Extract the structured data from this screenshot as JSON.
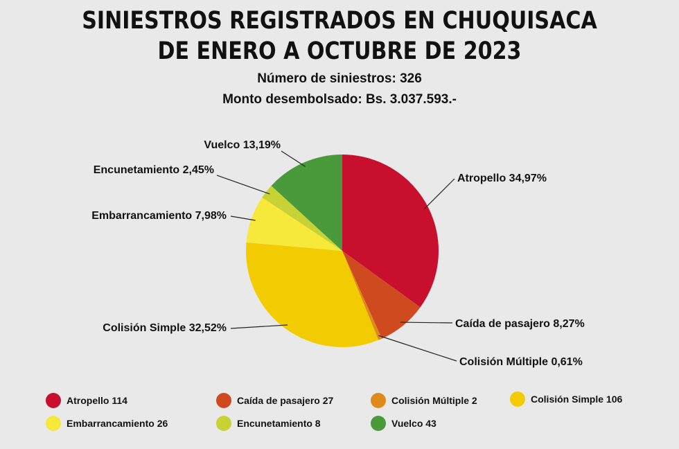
{
  "header": {
    "title_line1": "SINIESTROS REGISTRADOS EN CHUQUISACA",
    "title_line2": "DE ENERO A OCTUBRE DE 2023",
    "subtitle1": "Número de siniestros: 326",
    "subtitle2": "Monto desembolsado: Bs. 3.037.593.-"
  },
  "chart_data": {
    "type": "pie",
    "title": "SINIESTROS REGISTRADOS EN CHUQUISACA DE ENERO A OCTUBRE DE 2023",
    "slices": [
      {
        "name": "Atropello",
        "value": 114,
        "percent_label": "Atropello 34,97%",
        "legend_label": "Atropello 114",
        "color": "#c8102e"
      },
      {
        "name": "Caída de pasajero",
        "value": 27,
        "percent_label": "Caída de pasajero  8,27%",
        "legend_label": "Caída de pasajero 27",
        "color": "#d04a20"
      },
      {
        "name": "Colisión Múltiple",
        "value": 2,
        "percent_label": "Colisión Múltiple 0,61%",
        "legend_label": "Colisión Múltiple 2",
        "color": "#de8a1c"
      },
      {
        "name": "Colisión Simple",
        "value": 106,
        "percent_label": "Colisión Simple  32,52%",
        "legend_label": "Colisión Simple 106",
        "color": "#f2cc00"
      },
      {
        "name": "Embarrancamiento",
        "value": 26,
        "percent_label": "Embarrancamiento 7,98%",
        "legend_label": "Embarrancamiento 26",
        "color": "#f7e83c"
      },
      {
        "name": "Encunetamiento",
        "value": 8,
        "percent_label": "Encunetamiento 2,45%",
        "legend_label": "Encunetamiento 8",
        "color": "#c7d234"
      },
      {
        "name": "Vuelco",
        "value": 43,
        "percent_label": "Vuelco  13,19%",
        "legend_label": "Vuelco 43",
        "color": "#4a9a3c"
      }
    ]
  }
}
